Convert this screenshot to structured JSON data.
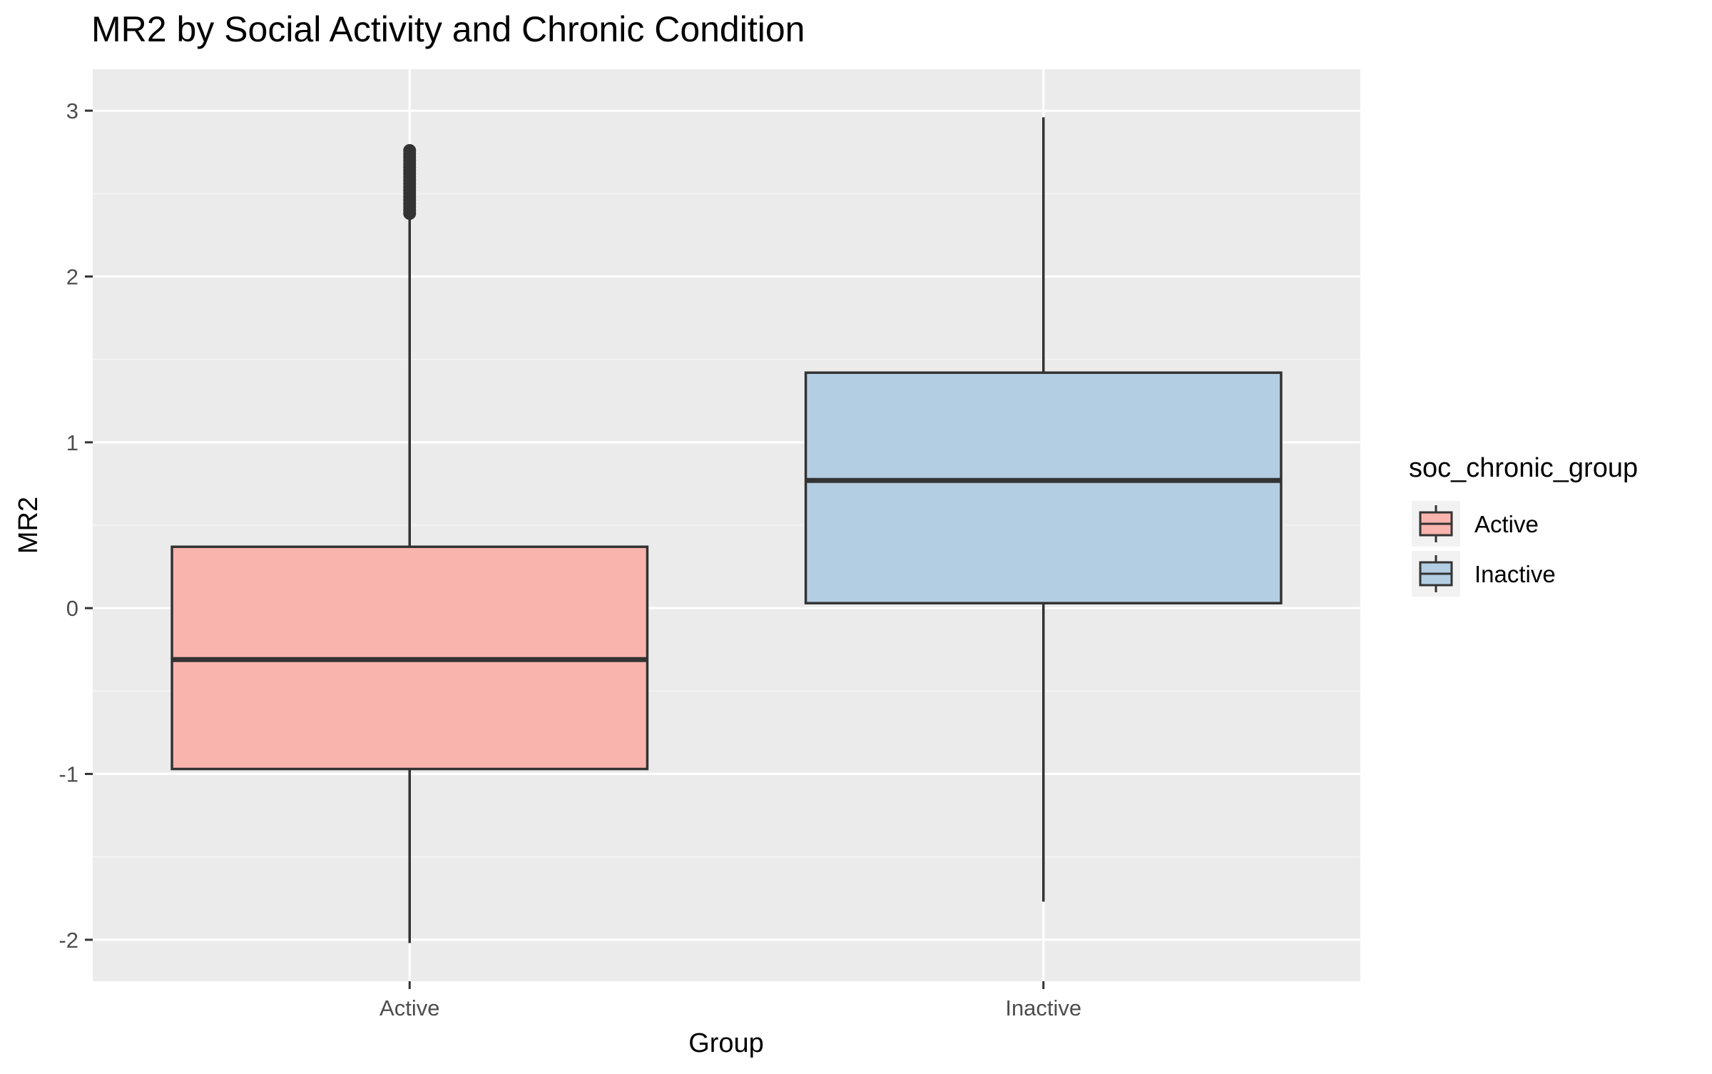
{
  "chart_data": {
    "type": "boxplot",
    "title": "MR2 by Social Activity and Chronic Condition",
    "xlabel": "Group",
    "ylabel": "MR2",
    "ylim": [
      -2.25,
      3.25
    ],
    "yticks": [
      -2,
      -1,
      0,
      1,
      2,
      3
    ],
    "ytick_labels": [
      "-2",
      "-1",
      "0",
      "1",
      "2",
      "3"
    ],
    "grid": true,
    "legend": {
      "title": "soc_chronic_group",
      "position": "right",
      "entries": [
        "Active",
        "Inactive"
      ]
    },
    "categories": [
      "Active",
      "Inactive"
    ],
    "series": [
      {
        "name": "Active",
        "color": "#F9B4AE",
        "whisker_low": -2.02,
        "q1": -0.97,
        "median": -0.31,
        "q3": 0.37,
        "whisker_high": 2.37,
        "outliers": [
          2.38,
          2.4,
          2.42,
          2.44,
          2.46,
          2.48,
          2.5,
          2.52,
          2.54,
          2.56,
          2.58,
          2.6,
          2.62,
          2.64,
          2.66,
          2.68,
          2.7,
          2.72,
          2.74,
          2.76
        ]
      },
      {
        "name": "Inactive",
        "color": "#B3CDE3",
        "whisker_low": -1.77,
        "q1": 0.03,
        "median": 0.77,
        "q3": 1.42,
        "whisker_high": 2.96,
        "outliers": []
      }
    ],
    "colors": {
      "panel_background": "#EBEBEB",
      "grid_major": "#FFFFFF",
      "grid_minor": "#F5F5F5",
      "box_outline": "#333333",
      "text": "#000000",
      "tick_text": "#4D4D4D"
    }
  }
}
